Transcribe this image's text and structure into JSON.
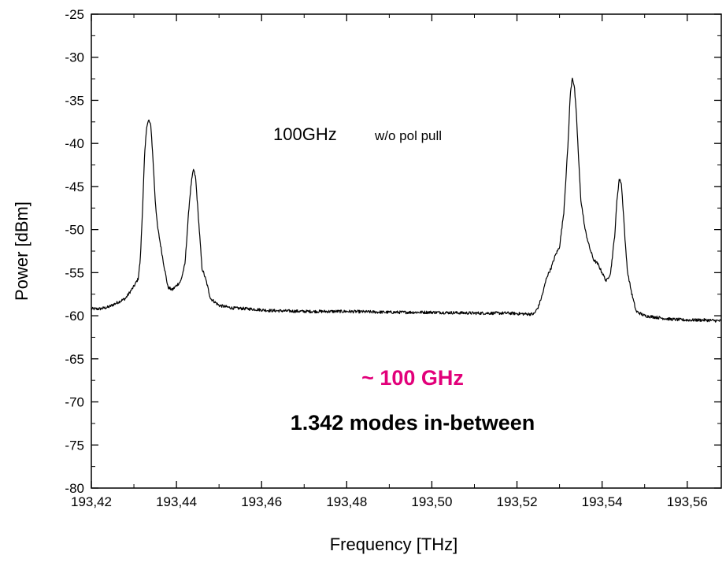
{
  "chart_data": {
    "type": "line",
    "title": "",
    "xlabel": "Frequency [THz]",
    "ylabel": "Power [dBm]",
    "xlim": [
      193.42,
      193.568
    ],
    "ylim": [
      -80,
      -25
    ],
    "x_ticks": [
      193.42,
      193.44,
      193.46,
      193.48,
      193.5,
      193.52,
      193.54,
      193.56
    ],
    "x_tick_labels": [
      "193,42",
      "193,44",
      "193,46",
      "193,48",
      "193,50",
      "193,52",
      "193,54",
      "193,56"
    ],
    "y_ticks": [
      -80,
      -75,
      -70,
      -65,
      -60,
      -55,
      -50,
      -45,
      -40,
      -35,
      -30,
      -25
    ],
    "y_tick_labels": [
      "-80",
      "-75",
      "-70",
      "-65",
      "-60",
      "-55",
      "-50",
      "-45",
      "-40",
      "-35",
      "-30",
      "-25"
    ],
    "grid": false,
    "legend": "none",
    "line_color": "#000000",
    "accent_color": "#e2007a",
    "annotations": {
      "label_main": "100GHz",
      "label_sub": "w/o pol pull",
      "spacing": "~ 100 GHz",
      "modes": "1.342 modes in-between"
    },
    "series": [
      {
        "x": [
          193.42,
          193.422,
          193.424,
          193.426,
          193.428,
          193.429,
          193.43,
          193.431,
          193.4315,
          193.432,
          193.4325,
          193.433,
          193.4335,
          193.434,
          193.4345,
          193.435,
          193.4355,
          193.436,
          193.437,
          193.438,
          193.439,
          193.44,
          193.441,
          193.442,
          193.443,
          193.4435,
          193.444,
          193.4445,
          193.445,
          193.4455,
          193.446,
          193.4465,
          193.447,
          193.448,
          193.45,
          193.453,
          193.457,
          193.462,
          193.47,
          193.48,
          193.49,
          193.5,
          193.51,
          193.518,
          193.522,
          193.524,
          193.525,
          193.526,
          193.527,
          193.528,
          193.529,
          193.53,
          193.531,
          193.532,
          193.5325,
          193.533,
          193.5335,
          193.534,
          193.5345,
          193.535,
          193.536,
          193.537,
          193.538,
          193.539,
          193.54,
          193.541,
          193.542,
          193.543,
          193.5435,
          193.544,
          193.5445,
          193.545,
          193.5455,
          193.546,
          193.547,
          193.548,
          193.55,
          193.553,
          193.556,
          193.56,
          193.564,
          193.568
        ],
        "y": [
          -59.2,
          -59.2,
          -59.0,
          -58.5,
          -58.0,
          -57.3,
          -56.6,
          -55.7,
          -53.5,
          -48.0,
          -41.5,
          -38.0,
          -37.3,
          -38.0,
          -42.0,
          -46.5,
          -49.5,
          -51.0,
          -54.0,
          -56.7,
          -57.0,
          -56.5,
          -56.0,
          -54.0,
          -47.0,
          -44.5,
          -43.0,
          -44.0,
          -47.5,
          -51.0,
          -54.5,
          -55.2,
          -56.0,
          -58.0,
          -58.8,
          -59.1,
          -59.2,
          -59.4,
          -59.5,
          -59.5,
          -59.6,
          -59.6,
          -59.7,
          -59.7,
          -59.8,
          -59.8,
          -59.0,
          -57.5,
          -55.5,
          -54.5,
          -53.0,
          -52.0,
          -48.0,
          -40.0,
          -34.5,
          -32.3,
          -33.5,
          -37.0,
          -42.0,
          -46.5,
          -50.0,
          -52.0,
          -53.5,
          -54.0,
          -55.0,
          -56.0,
          -55.0,
          -50.5,
          -46.5,
          -44.2,
          -44.5,
          -48.0,
          -52.0,
          -55.0,
          -57.5,
          -59.5,
          -60.0,
          -60.2,
          -60.4,
          -60.5,
          -60.5,
          -60.6
        ]
      }
    ]
  }
}
